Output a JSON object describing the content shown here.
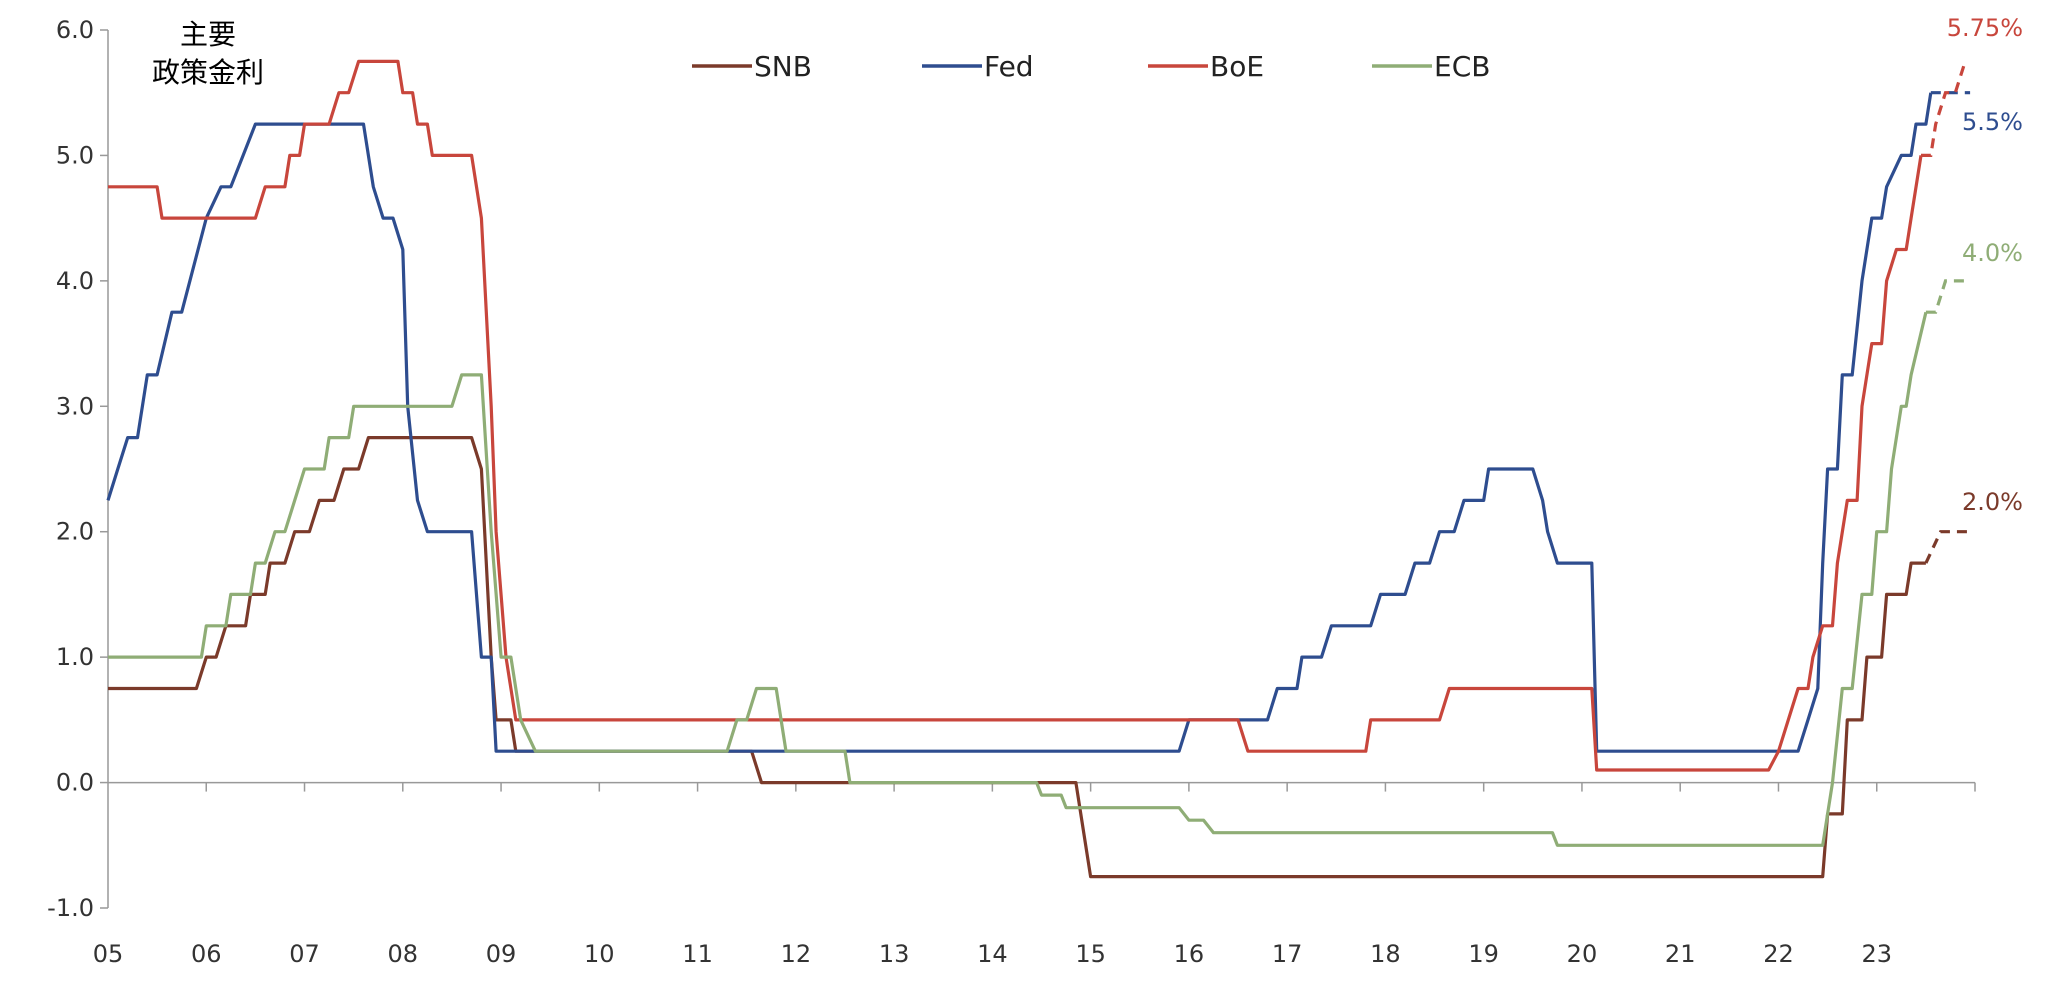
{
  "chart_data": {
    "type": "line",
    "title": "",
    "corner_label_lines": [
      "主要",
      "政策金利"
    ],
    "xlabel": "",
    "ylabel": "",
    "x_ticks": [
      "05",
      "06",
      "07",
      "08",
      "09",
      "10",
      "11",
      "12",
      "13",
      "14",
      "15",
      "16",
      "17",
      "18",
      "19",
      "20",
      "21",
      "22",
      "23"
    ],
    "x_range": [
      2005.0,
      2024.0
    ],
    "ylim": [
      -1.0,
      6.0
    ],
    "y_ticks": [
      "6.0",
      "5.0",
      "4.0",
      "3.0",
      "2.0",
      "1.0",
      "0.0",
      "-1.0"
    ],
    "y_tick_values": [
      6,
      5,
      4,
      3,
      2,
      1,
      0,
      -1
    ],
    "grid": false,
    "legend_position": "top-center",
    "series": [
      {
        "name": "SNB",
        "color": "#7b3a2a",
        "points": [
          [
            2005.0,
            0.75
          ],
          [
            2005.9,
            0.75
          ],
          [
            2006.0,
            1.0
          ],
          [
            2006.1,
            1.0
          ],
          [
            2006.2,
            1.25
          ],
          [
            2006.4,
            1.25
          ],
          [
            2006.45,
            1.5
          ],
          [
            2006.6,
            1.5
          ],
          [
            2006.65,
            1.75
          ],
          [
            2006.8,
            1.75
          ],
          [
            2006.9,
            2.0
          ],
          [
            2007.05,
            2.0
          ],
          [
            2007.15,
            2.25
          ],
          [
            2007.3,
            2.25
          ],
          [
            2007.4,
            2.5
          ],
          [
            2007.55,
            2.5
          ],
          [
            2007.65,
            2.75
          ],
          [
            2008.7,
            2.75
          ],
          [
            2008.8,
            2.5
          ],
          [
            2008.9,
            1.0
          ],
          [
            2008.95,
            0.5
          ],
          [
            2009.1,
            0.5
          ],
          [
            2009.15,
            0.25
          ],
          [
            2011.55,
            0.25
          ],
          [
            2011.65,
            0.0
          ],
          [
            2014.85,
            0.0
          ],
          [
            2015.0,
            -0.75
          ],
          [
            2022.45,
            -0.75
          ],
          [
            2022.5,
            -0.25
          ],
          [
            2022.65,
            -0.25
          ],
          [
            2022.7,
            0.5
          ],
          [
            2022.85,
            0.5
          ],
          [
            2022.9,
            1.0
          ],
          [
            2023.05,
            1.0
          ],
          [
            2023.1,
            1.5
          ],
          [
            2023.3,
            1.5
          ],
          [
            2023.35,
            1.75
          ],
          [
            2023.5,
            1.75
          ]
        ],
        "forecast_points": [
          [
            2023.5,
            1.75
          ],
          [
            2023.65,
            2.0
          ],
          [
            2023.95,
            2.0
          ]
        ],
        "end_label": "2.0%"
      },
      {
        "name": "Fed",
        "color": "#2e4d8f",
        "points": [
          [
            2005.0,
            2.25
          ],
          [
            2005.1,
            2.5
          ],
          [
            2005.2,
            2.75
          ],
          [
            2005.3,
            2.75
          ],
          [
            2005.4,
            3.25
          ],
          [
            2005.5,
            3.25
          ],
          [
            2005.65,
            3.75
          ],
          [
            2005.75,
            3.75
          ],
          [
            2006.0,
            4.5
          ],
          [
            2006.15,
            4.75
          ],
          [
            2006.25,
            4.75
          ],
          [
            2006.5,
            5.25
          ],
          [
            2007.6,
            5.25
          ],
          [
            2007.7,
            4.75
          ],
          [
            2007.8,
            4.5
          ],
          [
            2007.9,
            4.5
          ],
          [
            2008.0,
            4.25
          ],
          [
            2008.05,
            3.0
          ],
          [
            2008.15,
            2.25
          ],
          [
            2008.25,
            2.0
          ],
          [
            2008.7,
            2.0
          ],
          [
            2008.8,
            1.0
          ],
          [
            2008.9,
            1.0
          ],
          [
            2008.95,
            0.25
          ],
          [
            2015.9,
            0.25
          ],
          [
            2016.0,
            0.5
          ],
          [
            2016.8,
            0.5
          ],
          [
            2016.9,
            0.75
          ],
          [
            2017.1,
            0.75
          ],
          [
            2017.15,
            1.0
          ],
          [
            2017.35,
            1.0
          ],
          [
            2017.45,
            1.25
          ],
          [
            2017.85,
            1.25
          ],
          [
            2017.95,
            1.5
          ],
          [
            2018.2,
            1.5
          ],
          [
            2018.3,
            1.75
          ],
          [
            2018.45,
            1.75
          ],
          [
            2018.55,
            2.0
          ],
          [
            2018.7,
            2.0
          ],
          [
            2018.8,
            2.25
          ],
          [
            2019.0,
            2.25
          ],
          [
            2019.05,
            2.5
          ],
          [
            2019.5,
            2.5
          ],
          [
            2019.6,
            2.25
          ],
          [
            2019.65,
            2.0
          ],
          [
            2019.75,
            1.75
          ],
          [
            2020.1,
            1.75
          ],
          [
            2020.15,
            0.25
          ],
          [
            2022.2,
            0.25
          ],
          [
            2022.3,
            0.5
          ],
          [
            2022.4,
            0.75
          ],
          [
            2022.45,
            1.75
          ],
          [
            2022.5,
            2.5
          ],
          [
            2022.6,
            2.5
          ],
          [
            2022.65,
            3.25
          ],
          [
            2022.75,
            3.25
          ],
          [
            2022.85,
            4.0
          ],
          [
            2022.95,
            4.5
          ],
          [
            2023.05,
            4.5
          ],
          [
            2023.1,
            4.75
          ],
          [
            2023.25,
            5.0
          ],
          [
            2023.35,
            5.0
          ],
          [
            2023.4,
            5.25
          ],
          [
            2023.5,
            5.25
          ],
          [
            2023.55,
            5.5
          ]
        ],
        "forecast_points": [
          [
            2023.55,
            5.5
          ],
          [
            2023.95,
            5.5
          ]
        ],
        "end_label": "5.5%"
      },
      {
        "name": "BoE",
        "color": "#c8463c",
        "points": [
          [
            2005.0,
            4.75
          ],
          [
            2005.5,
            4.75
          ],
          [
            2005.55,
            4.5
          ],
          [
            2006.5,
            4.5
          ],
          [
            2006.6,
            4.75
          ],
          [
            2006.8,
            4.75
          ],
          [
            2006.85,
            5.0
          ],
          [
            2006.95,
            5.0
          ],
          [
            2007.0,
            5.25
          ],
          [
            2007.25,
            5.25
          ],
          [
            2007.35,
            5.5
          ],
          [
            2007.45,
            5.5
          ],
          [
            2007.55,
            5.75
          ],
          [
            2007.95,
            5.75
          ],
          [
            2008.0,
            5.5
          ],
          [
            2008.1,
            5.5
          ],
          [
            2008.15,
            5.25
          ],
          [
            2008.25,
            5.25
          ],
          [
            2008.3,
            5.0
          ],
          [
            2008.7,
            5.0
          ],
          [
            2008.8,
            4.5
          ],
          [
            2008.9,
            3.0
          ],
          [
            2008.95,
            2.0
          ],
          [
            2009.05,
            1.0
          ],
          [
            2009.15,
            0.5
          ],
          [
            2016.5,
            0.5
          ],
          [
            2016.6,
            0.25
          ],
          [
            2017.8,
            0.25
          ],
          [
            2017.85,
            0.5
          ],
          [
            2018.55,
            0.5
          ],
          [
            2018.65,
            0.75
          ],
          [
            2020.1,
            0.75
          ],
          [
            2020.15,
            0.1
          ],
          [
            2021.9,
            0.1
          ],
          [
            2022.0,
            0.25
          ],
          [
            2022.1,
            0.5
          ],
          [
            2022.2,
            0.75
          ],
          [
            2022.3,
            0.75
          ],
          [
            2022.35,
            1.0
          ],
          [
            2022.45,
            1.25
          ],
          [
            2022.55,
            1.25
          ],
          [
            2022.6,
            1.75
          ],
          [
            2022.7,
            2.25
          ],
          [
            2022.8,
            2.25
          ],
          [
            2022.85,
            3.0
          ],
          [
            2022.95,
            3.5
          ],
          [
            2023.05,
            3.5
          ],
          [
            2023.1,
            4.0
          ],
          [
            2023.2,
            4.25
          ],
          [
            2023.3,
            4.25
          ],
          [
            2023.35,
            4.5
          ],
          [
            2023.45,
            5.0
          ]
        ],
        "forecast_points": [
          [
            2023.45,
            5.0
          ],
          [
            2023.55,
            5.0
          ],
          [
            2023.6,
            5.25
          ],
          [
            2023.7,
            5.5
          ],
          [
            2023.8,
            5.5
          ],
          [
            2023.9,
            5.75
          ]
        ],
        "end_label": "5.75%"
      },
      {
        "name": "ECB",
        "color": "#8fad76",
        "points": [
          [
            2005.0,
            1.0
          ],
          [
            2005.95,
            1.0
          ],
          [
            2006.0,
            1.25
          ],
          [
            2006.2,
            1.25
          ],
          [
            2006.25,
            1.5
          ],
          [
            2006.45,
            1.5
          ],
          [
            2006.5,
            1.75
          ],
          [
            2006.6,
            1.75
          ],
          [
            2006.7,
            2.0
          ],
          [
            2006.8,
            2.0
          ],
          [
            2006.9,
            2.25
          ],
          [
            2007.0,
            2.5
          ],
          [
            2007.2,
            2.5
          ],
          [
            2007.25,
            2.75
          ],
          [
            2007.45,
            2.75
          ],
          [
            2007.5,
            3.0
          ],
          [
            2008.5,
            3.0
          ],
          [
            2008.6,
            3.25
          ],
          [
            2008.8,
            3.25
          ],
          [
            2008.9,
            2.0
          ],
          [
            2009.0,
            1.0
          ],
          [
            2009.1,
            1.0
          ],
          [
            2009.2,
            0.5
          ],
          [
            2009.35,
            0.25
          ],
          [
            2011.3,
            0.25
          ],
          [
            2011.4,
            0.5
          ],
          [
            2011.5,
            0.5
          ],
          [
            2011.6,
            0.75
          ],
          [
            2011.8,
            0.75
          ],
          [
            2011.9,
            0.25
          ],
          [
            2012.5,
            0.25
          ],
          [
            2012.55,
            0.0
          ],
          [
            2014.45,
            0.0
          ],
          [
            2014.5,
            -0.1
          ],
          [
            2014.7,
            -0.1
          ],
          [
            2014.75,
            -0.2
          ],
          [
            2015.9,
            -0.2
          ],
          [
            2016.0,
            -0.3
          ],
          [
            2016.15,
            -0.3
          ],
          [
            2016.25,
            -0.4
          ],
          [
            2019.7,
            -0.4
          ],
          [
            2019.75,
            -0.5
          ],
          [
            2022.45,
            -0.5
          ],
          [
            2022.55,
            0.0
          ],
          [
            2022.65,
            0.75
          ],
          [
            2022.75,
            0.75
          ],
          [
            2022.85,
            1.5
          ],
          [
            2022.95,
            1.5
          ],
          [
            2023.0,
            2.0
          ],
          [
            2023.1,
            2.0
          ],
          [
            2023.15,
            2.5
          ],
          [
            2023.25,
            3.0
          ],
          [
            2023.3,
            3.0
          ],
          [
            2023.35,
            3.25
          ],
          [
            2023.5,
            3.75
          ]
        ],
        "forecast_points": [
          [
            2023.5,
            3.75
          ],
          [
            2023.6,
            3.75
          ],
          [
            2023.7,
            4.0
          ],
          [
            2023.95,
            4.0
          ]
        ],
        "end_label": "4.0%"
      }
    ]
  }
}
